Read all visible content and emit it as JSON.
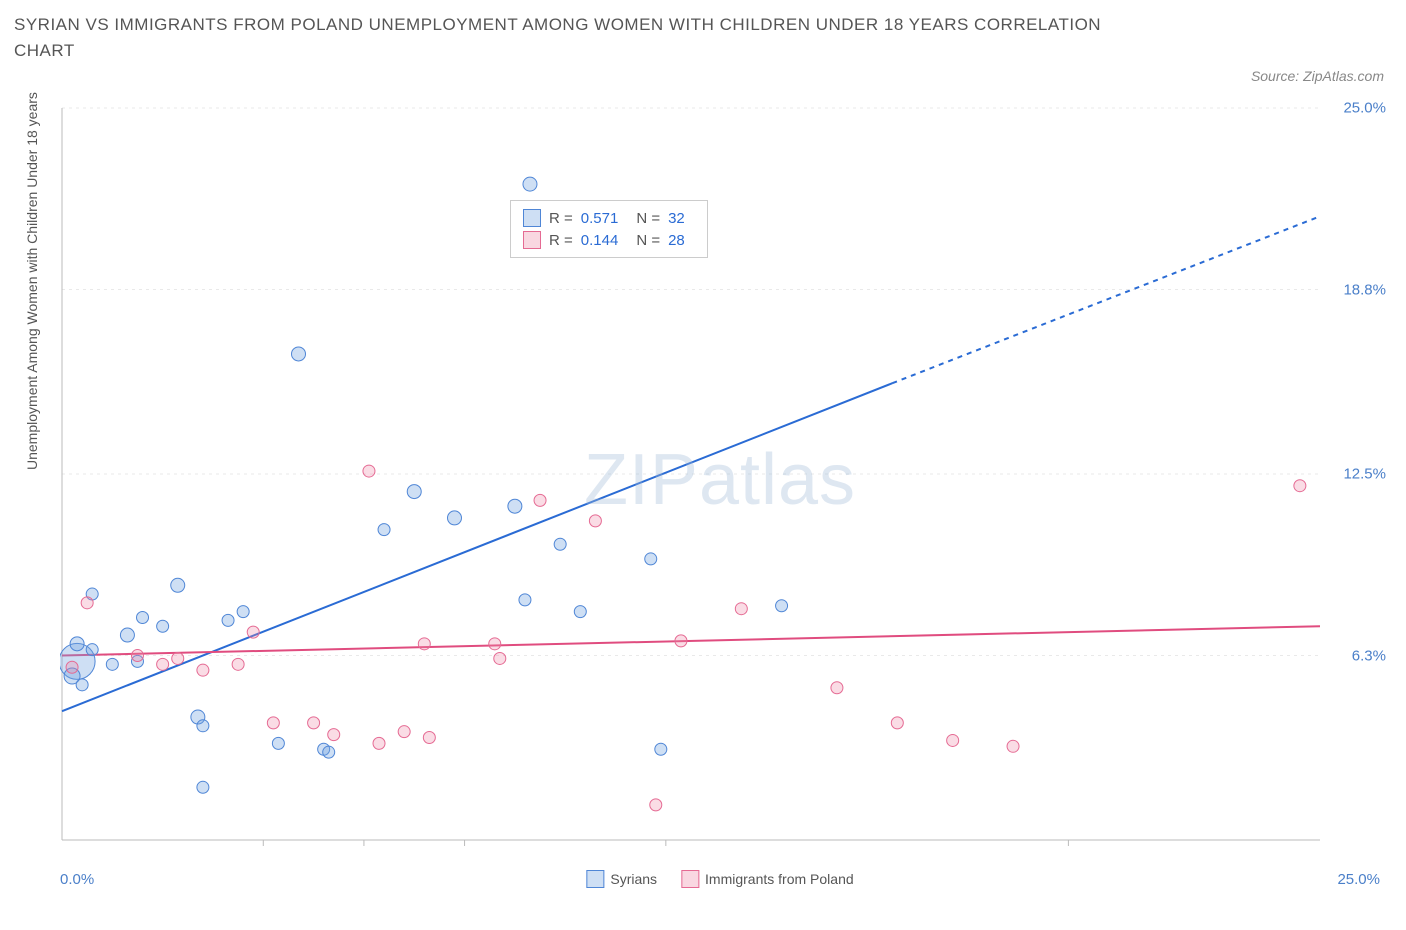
{
  "title": "SYRIAN VS IMMIGRANTS FROM POLAND UNEMPLOYMENT AMONG WOMEN WITH CHILDREN UNDER 18 YEARS CORRELATION CHART",
  "source": "Source: ZipAtlas.com",
  "ylabel": "Unemployment Among Women with Children Under 18 years",
  "watermark_a": "ZIP",
  "watermark_b": "atlas",
  "chart": {
    "type": "scatter",
    "xlim": [
      0,
      25
    ],
    "ylim": [
      0,
      25
    ],
    "x_start_label": "0.0%",
    "x_end_label": "25.0%",
    "y_ticks": [
      6.3,
      12.5,
      18.8,
      25.0
    ],
    "y_tick_labels": [
      "6.3%",
      "12.5%",
      "18.8%",
      "25.0%"
    ],
    "x_ticks_minor": [
      4,
      6,
      8,
      12,
      20
    ],
    "grid_color": "#e9e9e9",
    "axis_color": "#bbbbbb",
    "background_color": "#ffffff",
    "series": [
      {
        "key": "syrians",
        "label": "Syrians",
        "color_fill": "rgba(114,163,224,0.35)",
        "color_stroke": "#4f86d6",
        "R": "0.571",
        "N": "32",
        "trend": {
          "x1": 0,
          "y1": 4.4,
          "x2": 16.5,
          "y2": 15.6,
          "x2_ext": 25,
          "y2_ext": 21.3,
          "stroke": "#2a6bd4",
          "width": 2
        },
        "points": [
          {
            "x": 0.3,
            "y": 6.1,
            "r": 18
          },
          {
            "x": 0.2,
            "y": 5.6,
            "r": 8
          },
          {
            "x": 0.3,
            "y": 6.7,
            "r": 7
          },
          {
            "x": 0.6,
            "y": 8.4,
            "r": 6
          },
          {
            "x": 0.6,
            "y": 6.5,
            "r": 6
          },
          {
            "x": 1.0,
            "y": 6.0,
            "r": 6
          },
          {
            "x": 1.3,
            "y": 7.0,
            "r": 7
          },
          {
            "x": 1.5,
            "y": 6.1,
            "r": 6
          },
          {
            "x": 1.6,
            "y": 7.6,
            "r": 6
          },
          {
            "x": 2.0,
            "y": 7.3,
            "r": 6
          },
          {
            "x": 2.3,
            "y": 8.7,
            "r": 7
          },
          {
            "x": 2.7,
            "y": 4.2,
            "r": 7
          },
          {
            "x": 2.8,
            "y": 3.9,
            "r": 6
          },
          {
            "x": 2.8,
            "y": 1.8,
            "r": 6
          },
          {
            "x": 3.3,
            "y": 7.5,
            "r": 6
          },
          {
            "x": 3.6,
            "y": 7.8,
            "r": 6
          },
          {
            "x": 4.3,
            "y": 3.3,
            "r": 6
          },
          {
            "x": 4.7,
            "y": 16.6,
            "r": 7
          },
          {
            "x": 5.2,
            "y": 3.1,
            "r": 6
          },
          {
            "x": 5.3,
            "y": 3.0,
            "r": 6
          },
          {
            "x": 6.4,
            "y": 10.6,
            "r": 6
          },
          {
            "x": 7.0,
            "y": 11.9,
            "r": 7
          },
          {
            "x": 7.8,
            "y": 11.0,
            "r": 7
          },
          {
            "x": 9.0,
            "y": 11.4,
            "r": 7
          },
          {
            "x": 9.2,
            "y": 8.2,
            "r": 6
          },
          {
            "x": 9.3,
            "y": 22.4,
            "r": 7
          },
          {
            "x": 9.9,
            "y": 10.1,
            "r": 6
          },
          {
            "x": 10.3,
            "y": 7.8,
            "r": 6
          },
          {
            "x": 11.7,
            "y": 9.6,
            "r": 6
          },
          {
            "x": 11.9,
            "y": 3.1,
            "r": 6
          },
          {
            "x": 14.3,
            "y": 8.0,
            "r": 6
          },
          {
            "x": 0.4,
            "y": 5.3,
            "r": 6
          }
        ]
      },
      {
        "key": "poland",
        "label": "Immigrants from Poland",
        "color_fill": "rgba(238,140,170,0.30)",
        "color_stroke": "#e56a93",
        "R": "0.144",
        "N": "28",
        "trend": {
          "x1": 0,
          "y1": 6.3,
          "x2": 25,
          "y2": 7.3,
          "stroke": "#e04c7f",
          "width": 2
        },
        "points": [
          {
            "x": 0.5,
            "y": 8.1,
            "r": 6
          },
          {
            "x": 1.5,
            "y": 6.3,
            "r": 6
          },
          {
            "x": 2.0,
            "y": 6.0,
            "r": 6
          },
          {
            "x": 2.3,
            "y": 6.2,
            "r": 6
          },
          {
            "x": 2.8,
            "y": 5.8,
            "r": 6
          },
          {
            "x": 3.5,
            "y": 6.0,
            "r": 6
          },
          {
            "x": 3.8,
            "y": 7.1,
            "r": 6
          },
          {
            "x": 4.2,
            "y": 4.0,
            "r": 6
          },
          {
            "x": 5.0,
            "y": 4.0,
            "r": 6
          },
          {
            "x": 5.4,
            "y": 3.6,
            "r": 6
          },
          {
            "x": 6.1,
            "y": 12.6,
            "r": 6
          },
          {
            "x": 6.3,
            "y": 3.3,
            "r": 6
          },
          {
            "x": 6.8,
            "y": 3.7,
            "r": 6
          },
          {
            "x": 7.2,
            "y": 6.7,
            "r": 6
          },
          {
            "x": 7.3,
            "y": 3.5,
            "r": 6
          },
          {
            "x": 8.6,
            "y": 6.7,
            "r": 6
          },
          {
            "x": 8.7,
            "y": 6.2,
            "r": 6
          },
          {
            "x": 9.5,
            "y": 11.6,
            "r": 6
          },
          {
            "x": 10.6,
            "y": 10.9,
            "r": 6
          },
          {
            "x": 11.8,
            "y": 1.2,
            "r": 6
          },
          {
            "x": 12.3,
            "y": 6.8,
            "r": 6
          },
          {
            "x": 13.5,
            "y": 7.9,
            "r": 6
          },
          {
            "x": 15.4,
            "y": 5.2,
            "r": 6
          },
          {
            "x": 16.6,
            "y": 4.0,
            "r": 6
          },
          {
            "x": 17.7,
            "y": 3.4,
            "r": 6
          },
          {
            "x": 18.9,
            "y": 3.2,
            "r": 6
          },
          {
            "x": 24.6,
            "y": 12.1,
            "r": 6
          },
          {
            "x": 0.2,
            "y": 5.9,
            "r": 6
          }
        ]
      }
    ]
  }
}
